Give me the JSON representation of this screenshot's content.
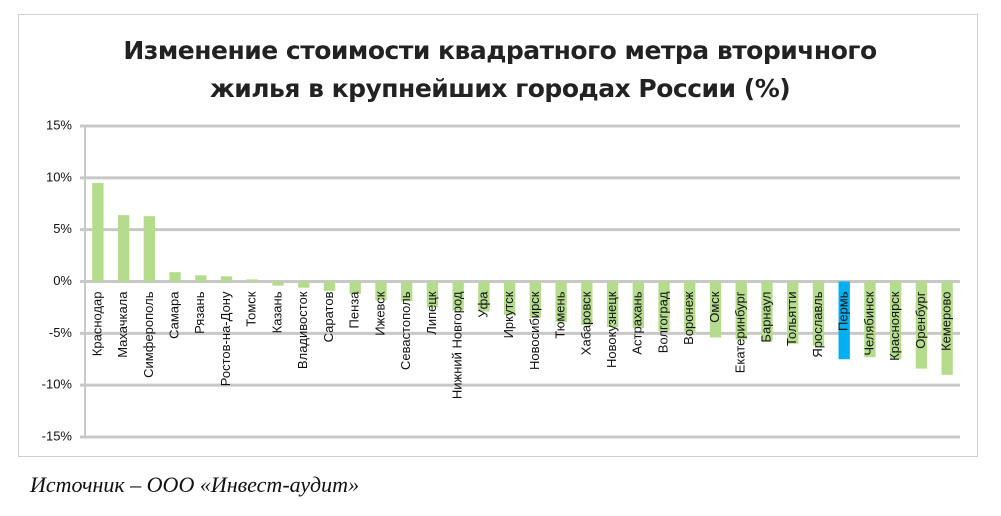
{
  "chart_data": {
    "type": "bar",
    "title": "Изменение стоимости квадратного метра вторичного жилья в крупнейших городах России (%)",
    "categories": [
      "Краснодар",
      "Махачкала",
      "Симферополь",
      "Самара",
      "Рязань",
      "Ростов-на-Дону",
      "Томск",
      "Казань",
      "Владивосток",
      "Саратов",
      "Пенза",
      "Ижевск",
      "Севастополь",
      "Липецк",
      "Нижний Новгород",
      "Уфа",
      "Иркутск",
      "Новосибирск",
      "Тюмень",
      "Хабаровск",
      "Новокузнецк",
      "Астрахань",
      "Волгоград",
      "Воронеж",
      "Омск",
      "Екатеринбург",
      "Барнаул",
      "Тольятти",
      "Ярославль",
      "Пермь",
      "Челябинск",
      "Красноярск",
      "Оренбург",
      "Кемерово"
    ],
    "values": [
      9.5,
      6.4,
      6.3,
      0.9,
      0.6,
      0.5,
      0.2,
      -0.4,
      -0.6,
      -0.9,
      -1.2,
      -1.8,
      -1.9,
      -2.5,
      -2.8,
      -2.9,
      -3.2,
      -3.5,
      -3.9,
      -4.2,
      -4.4,
      -4.5,
      -4.8,
      -5.0,
      -5.4,
      -5.6,
      -5.8,
      -6.0,
      -6.2,
      -7.5,
      -7.3,
      -7.5,
      -8.4,
      -9.0
    ],
    "colors": [
      "#b5dc8c",
      "#b5dc8c",
      "#b5dc8c",
      "#b5dc8c",
      "#b5dc8c",
      "#b5dc8c",
      "#b5dc8c",
      "#b5dc8c",
      "#b5dc8c",
      "#b5dc8c",
      "#b5dc8c",
      "#b5dc8c",
      "#b5dc8c",
      "#b5dc8c",
      "#b5dc8c",
      "#b5dc8c",
      "#b5dc8c",
      "#b5dc8c",
      "#b5dc8c",
      "#b5dc8c",
      "#b5dc8c",
      "#b5dc8c",
      "#b5dc8c",
      "#b5dc8c",
      "#b5dc8c",
      "#b5dc8c",
      "#b5dc8c",
      "#b5dc8c",
      "#b5dc8c",
      "#00b0f0",
      "#b5dc8c",
      "#b5dc8c",
      "#b5dc8c",
      "#b5dc8c"
    ],
    "ylim": [
      -15,
      15
    ],
    "yticks": [
      {
        "value": -15,
        "label": "-15%"
      },
      {
        "value": -10,
        "label": "-10%"
      },
      {
        "value": -5,
        "label": "-5%"
      },
      {
        "value": 0,
        "label": "0%"
      },
      {
        "value": 5,
        "label": "5%"
      },
      {
        "value": 10,
        "label": "10%"
      },
      {
        "value": 15,
        "label": "15%"
      }
    ],
    "grid": true
  },
  "source": "Источник – ООО «Инвест-аудит»"
}
